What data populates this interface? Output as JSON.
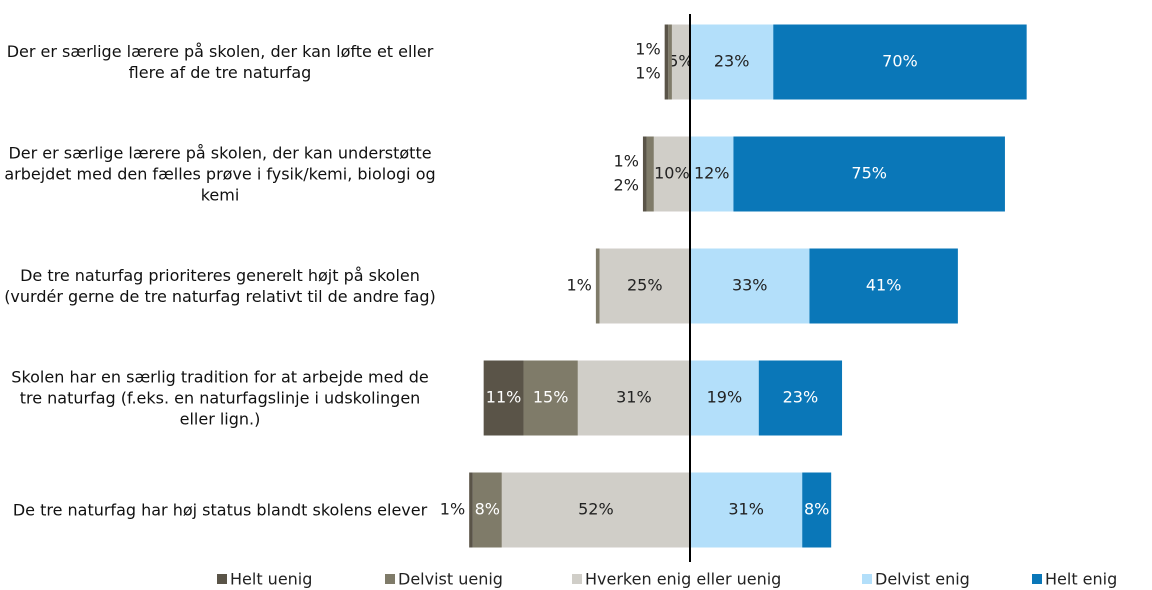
{
  "chart_data": {
    "type": "diverging_bar",
    "categories": [
      "Der er særlige lærere på skolen, der kan løfte et eller flere af de tre naturfag",
      "Der er særlige lærere på skolen, der kan understøtte arbejdet med den fælles prøve i fysik/kemi, biologi og kemi",
      "De tre naturfag prioriteres generelt højt på skolen (vurdér gerne de tre naturfag relativt til de andre fag)",
      "Skolen har en særlig tradition for at arbejde med de tre naturfag (f.eks. en naturfagslinje i udskolingen eller lign.)",
      "De tre naturfag har høj status blandt skolens elever"
    ],
    "series": [
      {
        "name": "Helt uenig",
        "color": "#5a5448",
        "values": [
          1,
          1,
          null,
          11,
          1
        ],
        "value_labels": [
          "1%",
          "1%",
          null,
          "11%",
          "1%"
        ]
      },
      {
        "name": "Delvist uenig",
        "color": "#7f7b69",
        "values": [
          1,
          2,
          1,
          15,
          8
        ],
        "value_labels": [
          "1%",
          "2%",
          "1%",
          "15%",
          "8%"
        ]
      },
      {
        "name": "Hverken enig eller uenig",
        "color": "#d0cec8",
        "values": [
          5,
          10,
          25,
          31,
          52
        ],
        "value_labels": [
          "5%",
          "10%",
          "25%",
          "31%",
          "52%"
        ]
      },
      {
        "name": "Delvist enig",
        "color": "#b3dffa",
        "values": [
          23,
          12,
          33,
          19,
          31
        ],
        "value_labels": [
          "23%",
          "12%",
          "33%",
          "19%",
          "31%"
        ]
      },
      {
        "name": "Helt enig",
        "color": "#0a77b8",
        "values": [
          70,
          75,
          41,
          23,
          8
        ],
        "value_labels": [
          "70%",
          "75%",
          "41%",
          "23%",
          "8%"
        ]
      }
    ]
  }
}
